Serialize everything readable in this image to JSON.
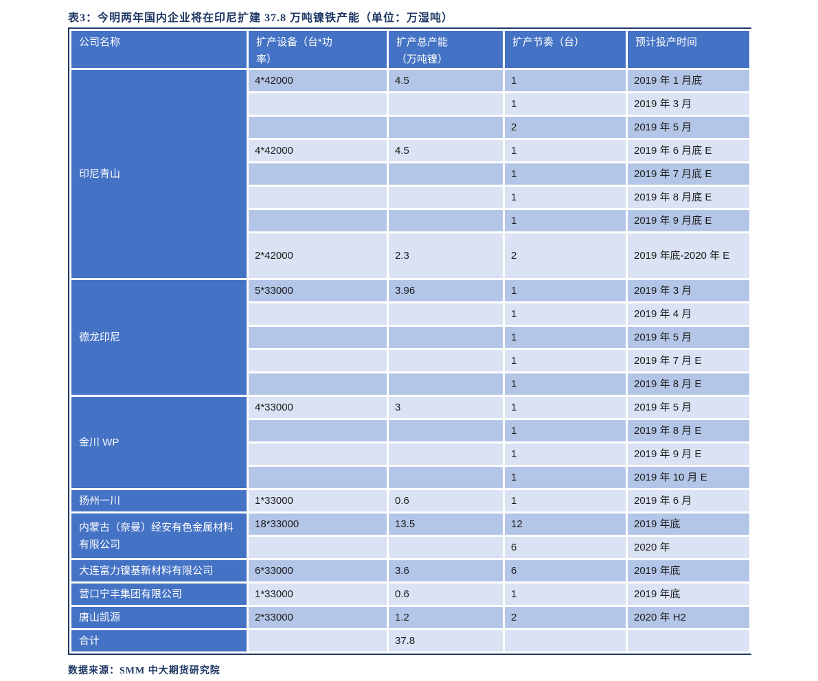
{
  "title": "表3：今明两年国内企业将在印尼扩建 37.8 万吨镍铁产能（单位：万湿吨）",
  "source": "数据来源：SMM 中大期货研究院",
  "colors": {
    "navy": "#1f3864",
    "header_bg": "#4472c4",
    "company_bg": "#4472c4",
    "row_dark": "#b4c6e7",
    "row_light": "#dae2f3"
  },
  "table": {
    "columns": [
      {
        "label": "公司名称"
      },
      {
        "label": "扩产设备（台*功\n率）"
      },
      {
        "label": "扩产总产能\n（万吨镍）"
      },
      {
        "label": "扩产节奏（台）"
      },
      {
        "label": "预计投产时间"
      }
    ],
    "groups": [
      {
        "company": "印尼青山",
        "rows": [
          {
            "cells": [
              "4*42000",
              "4.5",
              "1",
              "2019 年 1 月底"
            ]
          },
          {
            "cells": [
              "",
              "",
              "1",
              "2019 年 3 月"
            ]
          },
          {
            "cells": [
              "",
              "",
              "2",
              "2019 年 5 月"
            ]
          },
          {
            "cells": [
              "4*42000",
              "4.5",
              "1",
              "2019 年 6 月底 E"
            ]
          },
          {
            "cells": [
              "",
              "",
              "1",
              "2019 年 7 月底 E"
            ]
          },
          {
            "cells": [
              "",
              "",
              "1",
              "2019 年 8 月底 E"
            ]
          },
          {
            "cells": [
              "",
              "",
              "1",
              "2019 年 9 月底 E"
            ]
          },
          {
            "cells": [
              "2*42000",
              "2.3",
              "2",
              "2019 年底-2020 年 E"
            ],
            "tall": true
          }
        ]
      },
      {
        "company": "德龙印尼",
        "rows": [
          {
            "cells": [
              "5*33000",
              "3.96",
              "1",
              "2019 年 3 月"
            ]
          },
          {
            "cells": [
              "",
              "",
              "1",
              "2019 年 4 月"
            ]
          },
          {
            "cells": [
              "",
              "",
              "1",
              "2019 年 5 月"
            ]
          },
          {
            "cells": [
              "",
              "",
              "1",
              "2019 年 7 月 E"
            ]
          },
          {
            "cells": [
              "",
              "",
              "1",
              "2019 年 8 月 E"
            ]
          }
        ]
      },
      {
        "company": "金川 WP",
        "rows": [
          {
            "cells": [
              "4*33000",
              "3",
              "1",
              "2019 年 5 月"
            ]
          },
          {
            "cells": [
              "",
              "",
              "1",
              "2019 年 8 月 E"
            ]
          },
          {
            "cells": [
              "",
              "",
              "1",
              "2019 年 9 月 E"
            ]
          },
          {
            "cells": [
              "",
              "",
              "1",
              "2019 年 10 月 E"
            ]
          }
        ]
      },
      {
        "company": "扬州一川",
        "rows": [
          {
            "cells": [
              "1*33000",
              "0.6",
              "1",
              "2019 年 6 月"
            ]
          }
        ]
      },
      {
        "company": "内蒙古（奈曼）经安有色金属材料有限公司",
        "rows": [
          {
            "cells": [
              "18*33000",
              "13.5",
              "12",
              "2019 年底"
            ]
          },
          {
            "cells": [
              "",
              "",
              "6",
              "2020 年"
            ]
          }
        ]
      },
      {
        "company": "大连富力镍基新材料有限公司",
        "rows": [
          {
            "cells": [
              "6*33000",
              "3.6",
              "6",
              "2019 年底"
            ]
          }
        ]
      },
      {
        "company": "营口宁丰集团有限公司",
        "rows": [
          {
            "cells": [
              "1*33000",
              "0.6",
              "1",
              "2019 年底"
            ]
          }
        ]
      },
      {
        "company": "唐山凯源",
        "rows": [
          {
            "cells": [
              "2*33000",
              "1.2",
              "2",
              "2020 年 H2"
            ]
          }
        ]
      },
      {
        "company": "合计",
        "rows": [
          {
            "cells": [
              "",
              "37.8",
              "",
              ""
            ]
          }
        ]
      }
    ]
  }
}
